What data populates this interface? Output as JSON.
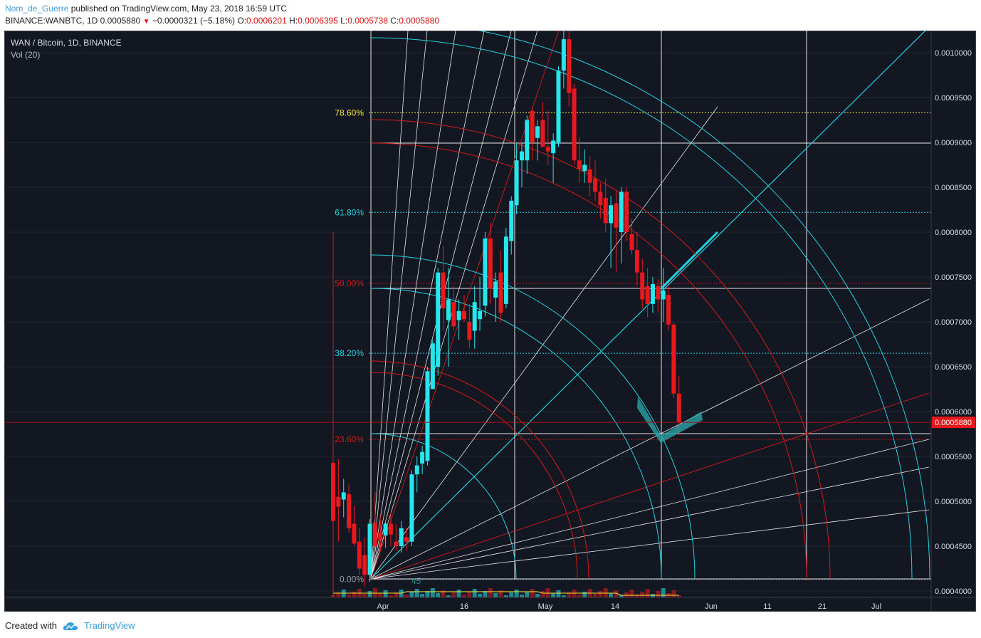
{
  "header": {
    "user": "Nom_de_Guerre",
    "published": "published on TradingView.com, May 23, 2018 16:59 UTC",
    "symbol_line": "BINANCE:WANBTC, 1D",
    "last": "0.0005880",
    "change": "−0.0000321 (−5.18%)",
    "o_label": "O:",
    "o": "0.0006201",
    "h_label": "H:",
    "h": "0.0006395",
    "l_label": "L:",
    "l": "0.0005738",
    "c_label": "C:",
    "c": "0.0005880"
  },
  "legend": {
    "symbol": "WAN / Bitcoin, 1D, BINANCE",
    "volume": "Vol (20)"
  },
  "footer": {
    "created_with": "Created with",
    "brand": "TradingView"
  },
  "colors": {
    "background": "#131722",
    "up": "#26e6ec",
    "down": "#e8191c",
    "fib_red": "#d11a1a",
    "fib_cyan": "#22d3e0",
    "fib_yellow": "#f5e83a"
  },
  "chart_data": {
    "type": "candlestick",
    "title": "WAN / Bitcoin, 1D, BINANCE",
    "y_ticks": [
      "0.0010000",
      "0.0009500",
      "0.0009000",
      "0.0008500",
      "0.0008000",
      "0.0007500",
      "0.0007000",
      "0.0006500",
      "0.0006000",
      "0.0005500",
      "0.0005000",
      "0.0004500",
      "0.0004000"
    ],
    "x_ticks": [
      "Apr",
      "16",
      "May",
      "14",
      "Jun",
      "11",
      "21",
      "Jul"
    ],
    "last_price_label": "0.0005880",
    "fib_levels": [
      {
        "label": "78.60%",
        "price": 0.000933,
        "color": "#f5e83a"
      },
      {
        "label": "61.80%",
        "price": 0.000822,
        "color": "#22d3e0"
      },
      {
        "label": "50.00%",
        "price": 0.000743,
        "color": "#d11a1a"
      },
      {
        "label": "38.20%",
        "price": 0.000665,
        "color": "#22d3e0"
      },
      {
        "label": "23.60%",
        "price": 0.000569,
        "color": "#d11a1a"
      },
      {
        "label": "0.00%",
        "price": 0.000413,
        "color": "#9aa0a8"
      }
    ],
    "angle_label": "45°",
    "candles": [
      {
        "o": 0.000543,
        "h": 0.000555,
        "l": 0.000395,
        "c": 0.000478
      },
      {
        "o": 0.000505,
        "h": 0.000547,
        "l": 0.000455,
        "c": 0.000494
      },
      {
        "o": 0.000502,
        "h": 0.000525,
        "l": 0.000482,
        "c": 0.00051
      },
      {
        "o": 0.000508,
        "h": 0.00052,
        "l": 0.000465,
        "c": 0.00047
      },
      {
        "o": 0.000475,
        "h": 0.000495,
        "l": 0.00045,
        "c": 0.000453
      },
      {
        "o": 0.000455,
        "h": 0.00047,
        "l": 0.000418,
        "c": 0.000425
      },
      {
        "o": 0.00044,
        "h": 0.00046,
        "l": 0.000405,
        "c": 0.000418
      },
      {
        "o": 0.000418,
        "h": 0.00048,
        "l": 0.00041,
        "c": 0.000475
      },
      {
        "o": 0.000476,
        "h": 0.00051,
        "l": 0.000448,
        "c": 0.00045
      },
      {
        "o": 0.000465,
        "h": 0.000485,
        "l": 0.000445,
        "c": 0.000457
      },
      {
        "o": 0.000462,
        "h": 0.000478,
        "l": 0.000448,
        "c": 0.000475
      },
      {
        "o": 0.000475,
        "h": 0.000488,
        "l": 0.00045,
        "c": 0.000463
      },
      {
        "o": 0.000455,
        "h": 0.000475,
        "l": 0.000445,
        "c": 0.00045
      },
      {
        "o": 0.00045,
        "h": 0.000478,
        "l": 0.000443,
        "c": 0.00047
      },
      {
        "o": 0.00046,
        "h": 0.00047,
        "l": 0.000445,
        "c": 0.000455
      },
      {
        "o": 0.000455,
        "h": 0.000535,
        "l": 0.00045,
        "c": 0.00053
      },
      {
        "o": 0.00053,
        "h": 0.00055,
        "l": 0.00051,
        "c": 0.00054
      },
      {
        "o": 0.000542,
        "h": 0.000562,
        "l": 0.00053,
        "c": 0.000555
      },
      {
        "o": 0.000545,
        "h": 0.00065,
        "l": 0.00054,
        "c": 0.000645
      },
      {
        "o": 0.000625,
        "h": 0.00068,
        "l": 0.000625,
        "c": 0.000676
      },
      {
        "o": 0.00065,
        "h": 0.00076,
        "l": 0.00064,
        "c": 0.000755
      },
      {
        "o": 0.000755,
        "h": 0.000785,
        "l": 0.00069,
        "c": 0.000715
      },
      {
        "o": 0.000702,
        "h": 0.00076,
        "l": 0.00065,
        "c": 0.000725
      },
      {
        "o": 0.000722,
        "h": 0.00074,
        "l": 0.00069,
        "c": 0.000695
      },
      {
        "o": 0.000702,
        "h": 0.000725,
        "l": 0.00068,
        "c": 0.000712
      },
      {
        "o": 0.000712,
        "h": 0.00073,
        "l": 0.0007,
        "c": 0.000703
      },
      {
        "o": 0.0007,
        "h": 0.00072,
        "l": 0.00067,
        "c": 0.00068
      },
      {
        "o": 0.00069,
        "h": 0.00074,
        "l": 0.00067,
        "c": 0.000722
      },
      {
        "o": 0.000703,
        "h": 0.00075,
        "l": 0.00069,
        "c": 0.000712
      },
      {
        "o": 0.000718,
        "h": 0.0008,
        "l": 0.000706,
        "c": 0.000793
      },
      {
        "o": 0.000793,
        "h": 0.00081,
        "l": 0.00072,
        "c": 0.000737
      },
      {
        "o": 0.000727,
        "h": 0.000755,
        "l": 0.0007,
        "c": 0.000745
      },
      {
        "o": 0.000755,
        "h": 0.00078,
        "l": 0.0007,
        "c": 0.00071
      },
      {
        "o": 0.00072,
        "h": 0.000805,
        "l": 0.000715,
        "c": 0.000795
      },
      {
        "o": 0.00079,
        "h": 0.00084,
        "l": 0.000775,
        "c": 0.000835
      },
      {
        "o": 0.00083,
        "h": 0.0009,
        "l": 0.00082,
        "c": 0.00088
      },
      {
        "o": 0.00088,
        "h": 0.0009,
        "l": 0.00085,
        "c": 0.00089
      },
      {
        "o": 0.00088,
        "h": 0.00093,
        "l": 0.000865,
        "c": 0.000925
      },
      {
        "o": 0.000935,
        "h": 0.00094,
        "l": 0.00088,
        "c": 0.0009
      },
      {
        "o": 0.000905,
        "h": 0.000925,
        "l": 0.00088,
        "c": 0.000918
      },
      {
        "o": 0.000925,
        "h": 0.000945,
        "l": 0.000895,
        "c": 0.000895
      },
      {
        "o": 0.000895,
        "h": 0.000935,
        "l": 0.000875,
        "c": 0.00089
      },
      {
        "o": 0.000888,
        "h": 0.00091,
        "l": 0.000855,
        "c": 0.000902
      },
      {
        "o": 0.0009,
        "h": 0.000985,
        "l": 0.000895,
        "c": 0.00098
      },
      {
        "o": 0.00098,
        "h": 0.001035,
        "l": 0.00096,
        "c": 0.001015
      },
      {
        "o": 0.001015,
        "h": 0.001025,
        "l": 0.00094,
        "c": 0.000955
      },
      {
        "o": 0.00096,
        "h": 0.000965,
        "l": 0.000875,
        "c": 0.00088
      },
      {
        "o": 0.00088,
        "h": 0.000905,
        "l": 0.000855,
        "c": 0.00087
      },
      {
        "o": 0.000868,
        "h": 0.000892,
        "l": 0.000855,
        "c": 0.000875
      },
      {
        "o": 0.00087,
        "h": 0.000885,
        "l": 0.00084,
        "c": 0.000855
      },
      {
        "o": 0.00086,
        "h": 0.00088,
        "l": 0.000835,
        "c": 0.000845
      },
      {
        "o": 0.000845,
        "h": 0.000855,
        "l": 0.000815,
        "c": 0.00083
      },
      {
        "o": 0.000838,
        "h": 0.00086,
        "l": 0.0008,
        "c": 0.00081
      },
      {
        "o": 0.00081,
        "h": 0.00084,
        "l": 0.00076,
        "c": 0.00083
      },
      {
        "o": 0.000832,
        "h": 0.000848,
        "l": 0.000755,
        "c": 0.000805
      },
      {
        "o": 0.0008,
        "h": 0.00085,
        "l": 0.000765,
        "c": 0.000845
      },
      {
        "o": 0.000845,
        "h": 0.00085,
        "l": 0.00079,
        "c": 0.0008
      },
      {
        "o": 0.000798,
        "h": 0.000815,
        "l": 0.000775,
        "c": 0.00078
      },
      {
        "o": 0.00078,
        "h": 0.0008,
        "l": 0.00074,
        "c": 0.000755
      },
      {
        "o": 0.000755,
        "h": 0.00077,
        "l": 0.000715,
        "c": 0.000725
      },
      {
        "o": 0.00074,
        "h": 0.00076,
        "l": 0.000705,
        "c": 0.00072
      },
      {
        "o": 0.00072,
        "h": 0.00075,
        "l": 0.00071,
        "c": 0.000742
      },
      {
        "o": 0.00074,
        "h": 0.000748,
        "l": 0.00071,
        "c": 0.000725
      },
      {
        "o": 0.000725,
        "h": 0.00076,
        "l": 0.0007,
        "c": 0.000735
      },
      {
        "o": 0.00073,
        "h": 0.00074,
        "l": 0.00069,
        "c": 0.000697
      },
      {
        "o": 0.000697,
        "h": 0.0007,
        "l": 0.000615,
        "c": 0.00062
      },
      {
        "o": 0.00062,
        "h": 0.00064,
        "l": 0.000574,
        "c": 0.000588
      }
    ],
    "volume_ma": [
      0.9,
      0.7,
      0.55,
      0.4,
      0.3,
      0.3,
      0.3,
      0.35,
      0.8,
      0.4
    ]
  }
}
